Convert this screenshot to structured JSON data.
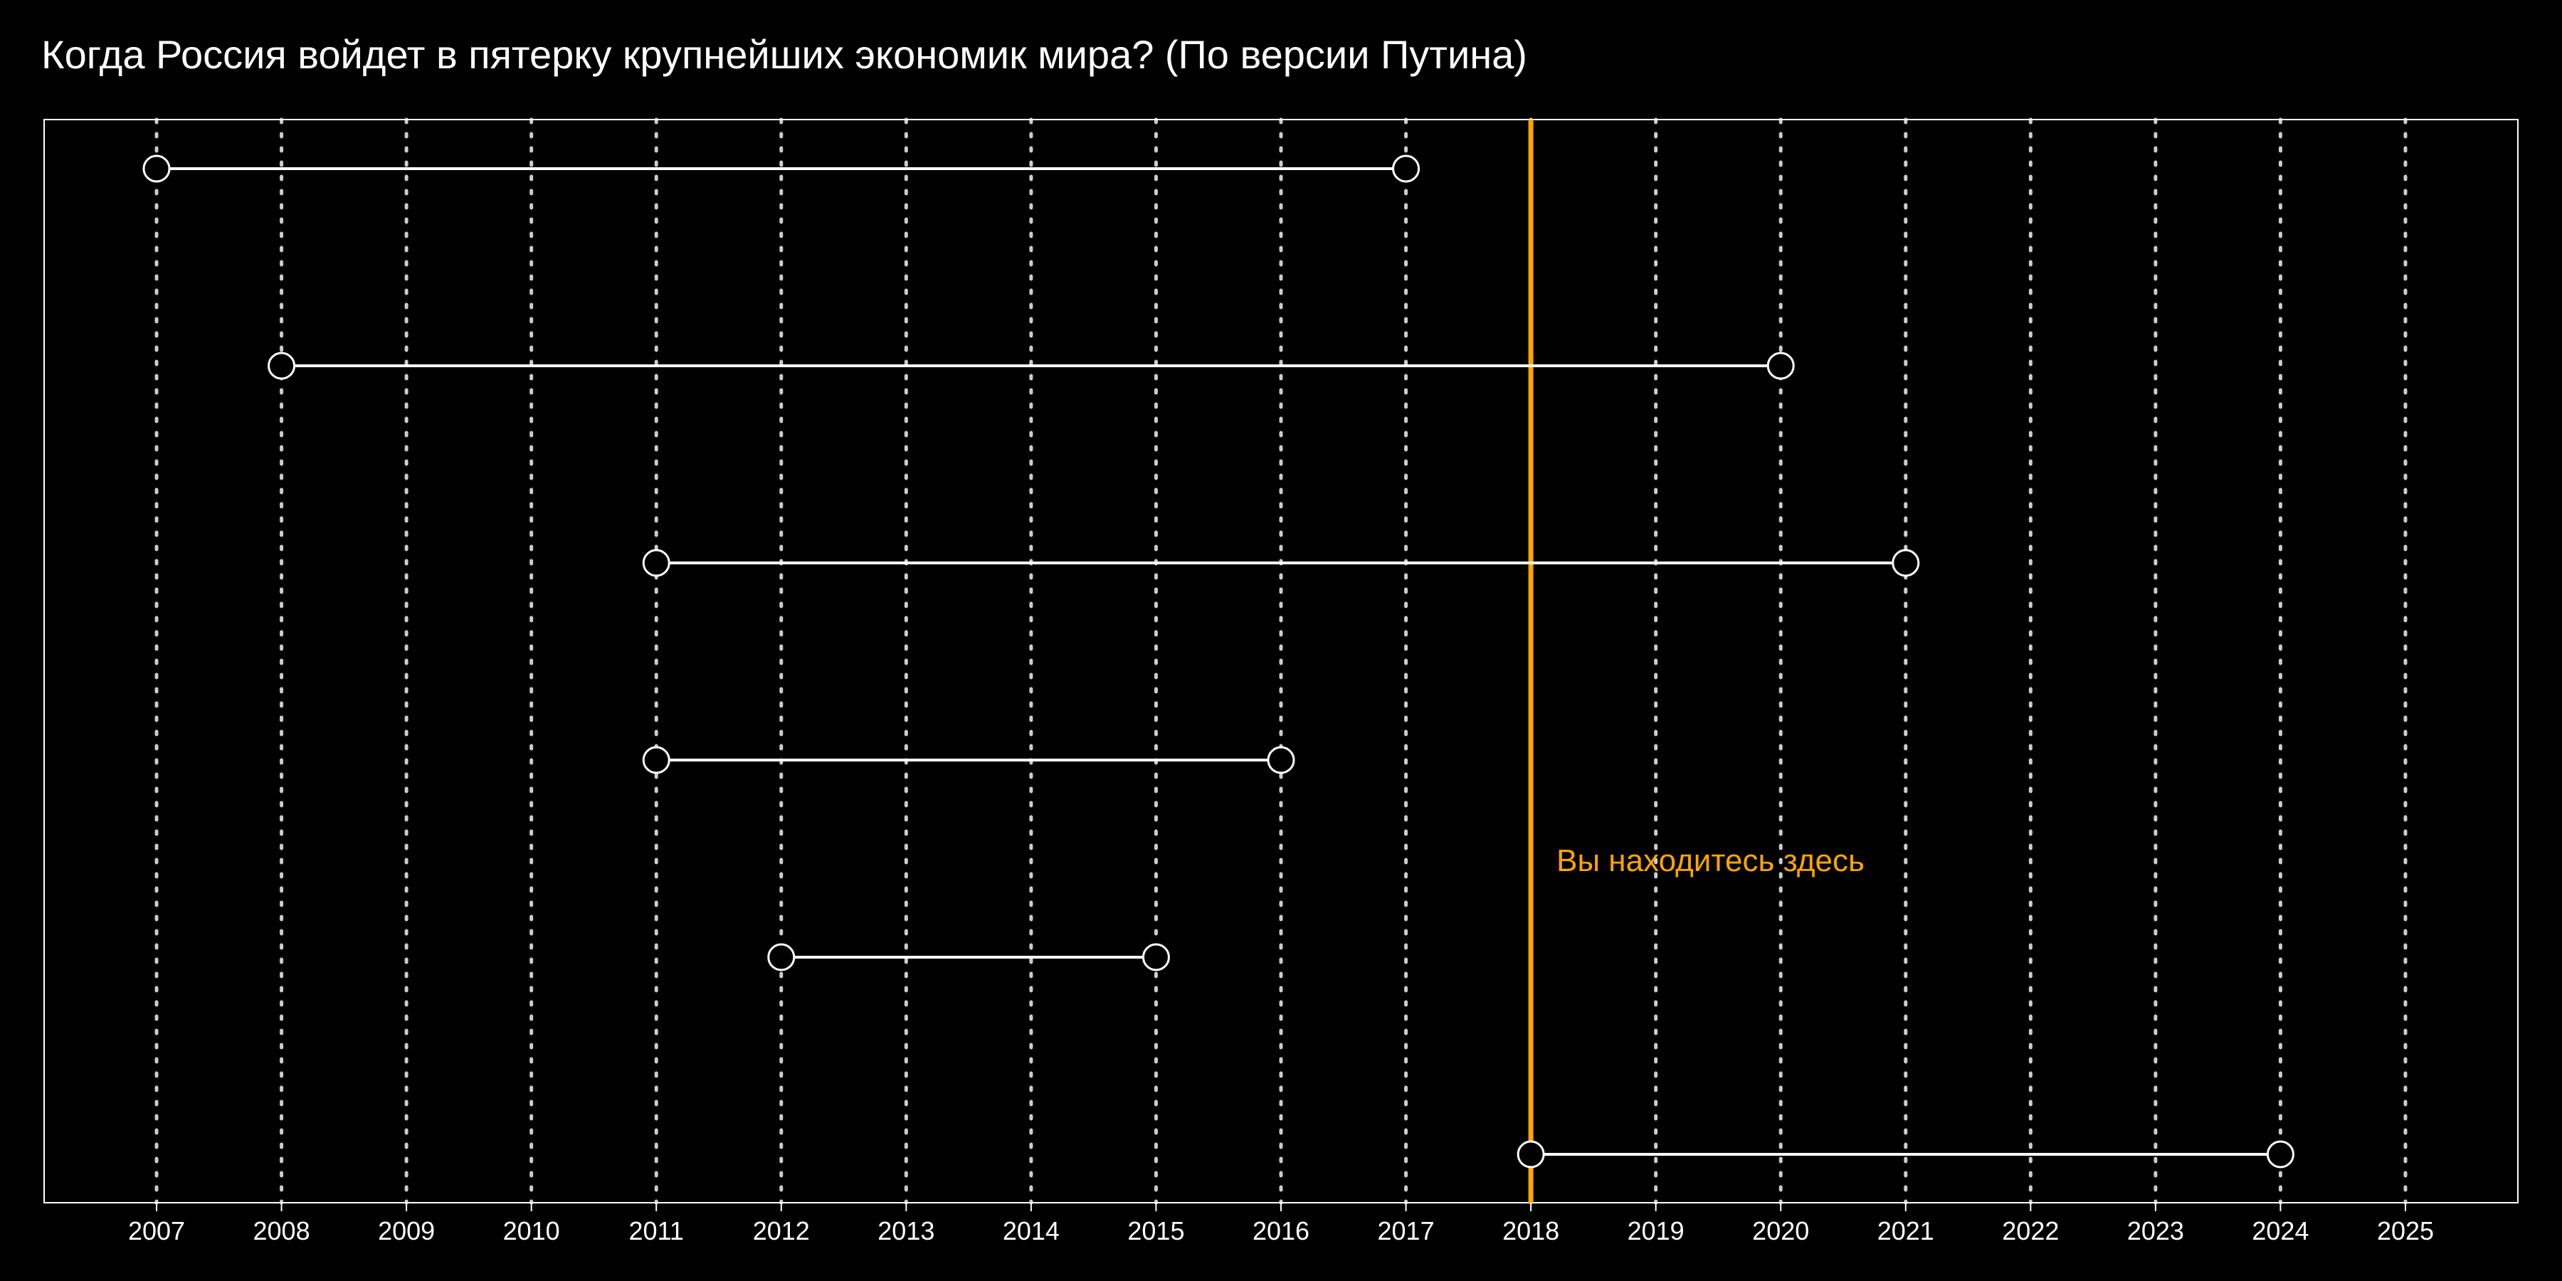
{
  "chart_data": {
    "type": "timeline",
    "title": "Когда Россия войдет в пятерку крупнейших экономик мира? (По версии Путина)",
    "xlabel": "",
    "ylabel": "",
    "xlim": [
      2006.1,
      2025.9
    ],
    "x_ticks": [
      2007,
      2008,
      2009,
      2010,
      2011,
      2012,
      2013,
      2014,
      2015,
      2016,
      2017,
      2018,
      2019,
      2020,
      2021,
      2022,
      2023,
      2024,
      2025
    ],
    "grid": "vertical dotted",
    "segments": [
      {
        "start": 2007,
        "end": 2017
      },
      {
        "start": 2008,
        "end": 2020
      },
      {
        "start": 2011,
        "end": 2021
      },
      {
        "start": 2011,
        "end": 2016
      },
      {
        "start": 2012,
        "end": 2015
      },
      {
        "start": 2018,
        "end": 2024
      }
    ],
    "reference_line": {
      "x": 2018,
      "label": "Вы находитесь здесь",
      "color": "#ffa500"
    },
    "colors": {
      "background": "#000000",
      "foreground": "#ffffff",
      "highlight": "#ffa500",
      "grid": "#cccccc"
    }
  }
}
